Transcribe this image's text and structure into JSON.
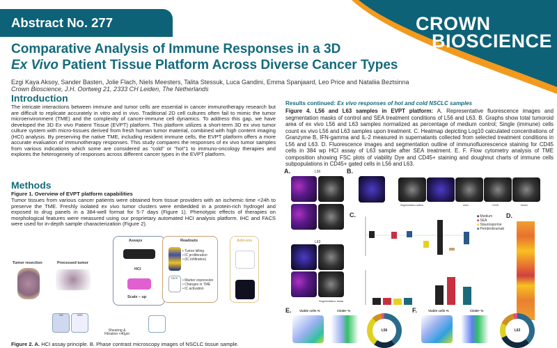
{
  "header": {
    "abstract": "Abstract No. 277",
    "logo_line1": "CROWN",
    "logo_line2": "BIOSCIENCE",
    "brand_color": "#0e6277",
    "accent": "#f39a1e"
  },
  "title": {
    "line1": "Comparative Analysis of Immune Responses in a 3D",
    "line2_italic": "Ex Vivo",
    "line2_rest": " Patient Tissue Platform Across Diverse Cancer Types"
  },
  "authors": "Ezgi Kaya Aksoy, Sander Basten, Jolie Flach, Niels Meesters, Talita Stessuk, Luca Gandini, Emma Spanjaard, Leo Price and Nataliia Beztsinna",
  "affiliation": "Crown Bioscience, J.H. Oortweg 21, 2333 CH Leiden, The Netherlands",
  "intro": {
    "heading": "Introduction",
    "text": "The intricate interactions between immune and tumor cells are essential in cancer immunotherapy research but are difficult to replicate accurately in vitro and in vivo. Traditional 2D cell cultures often fail to mimic the tumor microenvironment (TME) and the complexity of cancer-immune cell dynamics. To address this gap, we have developed the 3D Ex vivo Patient Tissue (EVPT) platform. This platform utilizes a short-term 3D ex vivo tumor culture system with micro-tissues derived from fresh human tumor material, combined with high content imaging (HCI) analysis. By preserving the native TME, including resident immune cells, the EVPT platform offers a more accurate evaluation of immunotherapy responses. This study compares the responses of ex vivo tumor samples from various indications which some are considered as \"cold\" or \"hot\"1 to immuno-oncology therapies and explores the heterogeneity of responses across different cancer types in the EVPT platform."
  },
  "methods": {
    "heading": "Methods",
    "fig1_caption": "Figure 1. Overview of EVPT platform capabilities",
    "text": "Tumor tissues from various cancer patients were obtained from tissue providers with an ischemic time <24h to preserve the TME. Freshly isolated ex vivo tumor clusters were embedded in a protein-rich hydrogel and exposed to drug panels in a 384-well format for 5-7 days (Figure 1). Phenotypic effects of therapies on morphological features were measured using our proprietary automated HCI analysis platform. IHC and FACS were used for in-depth sample characterization (Figure 2).",
    "diagram": {
      "tumor_resection": "Tumor resection",
      "processed_tumor": "Processed tumor",
      "assays": "Assays",
      "hci": "HCI",
      "scale_up": "Scale – up",
      "readouts": "Readouts",
      "readouts_hci": [
        "• Tumor killing",
        "• IC proliferation",
        "• (IC infiltration)"
      ],
      "facs": "FACS",
      "readouts_facs": [
        "• Marker expression",
        "• Changes in TME",
        "• IC activation"
      ],
      "addons": "Add-ons",
      "ihc": "IHC",
      "ngs": "NGS",
      "shearing": "Shearing &",
      "filtration": "Filtration <40µm"
    },
    "fig2_caption_bold": "Figure 2. A.",
    "fig2_caption": " HCI assay principle. B. Phase contrast microscopy images of NSCLC tissue sample."
  },
  "results": {
    "heading_prefix": "Results continued: ",
    "heading_italic": "Ex vivo responses of hot and cold NSCLC samples",
    "fig4_bold": "Figure 4. L56 and L63 samples in EVPT platform: ",
    "fig4_text": "A. Representative fluorescence images and segmentation masks of control and SEA treatment conditions of L56 and L63. B. Graphs show total tumoroid area of ex vivo L56 and L63 samples normalized as percentage of medium control; Single (immune) cells count ex vivo L56 and L63 samples upon treatment. C. Heatmap depicting Log10 calculated concentrations of Granzyme B, IFN-gamma and IL-2 measured in supernatants collected from selected treatment conditions in L56 and L63. D. Fluorescence images and segmentation outline of immunofluorescence staining for CD45 cells in 384 wp HCI assay of L63 sample after SEA treatment. E. F. Flow cytometry analysis of TME composition showing FSC plots of viability Dye and CD45+ staining and doughnut charts of immune cells subpopulations in CD45+ gated cells in L56 and L63."
  },
  "figure4": {
    "panels": [
      "A.",
      "B.",
      "C.",
      "D.",
      "E.",
      "F."
    ],
    "l56": "L56",
    "l63": "L63",
    "medium": "Medium",
    "sea": "SEA",
    "segmentation_mask": "Segmentation mask",
    "segmentation_outline": "Segmentation outline",
    "legend": [
      "Medium",
      "SEA",
      "Staurosporine",
      "Pembrolizumab"
    ],
    "viable": "Viable cells %",
    "cd45": "CD45+ %",
    "b_labels": [
      "Actin",
      "CD45",
      "Nuclei"
    ]
  }
}
